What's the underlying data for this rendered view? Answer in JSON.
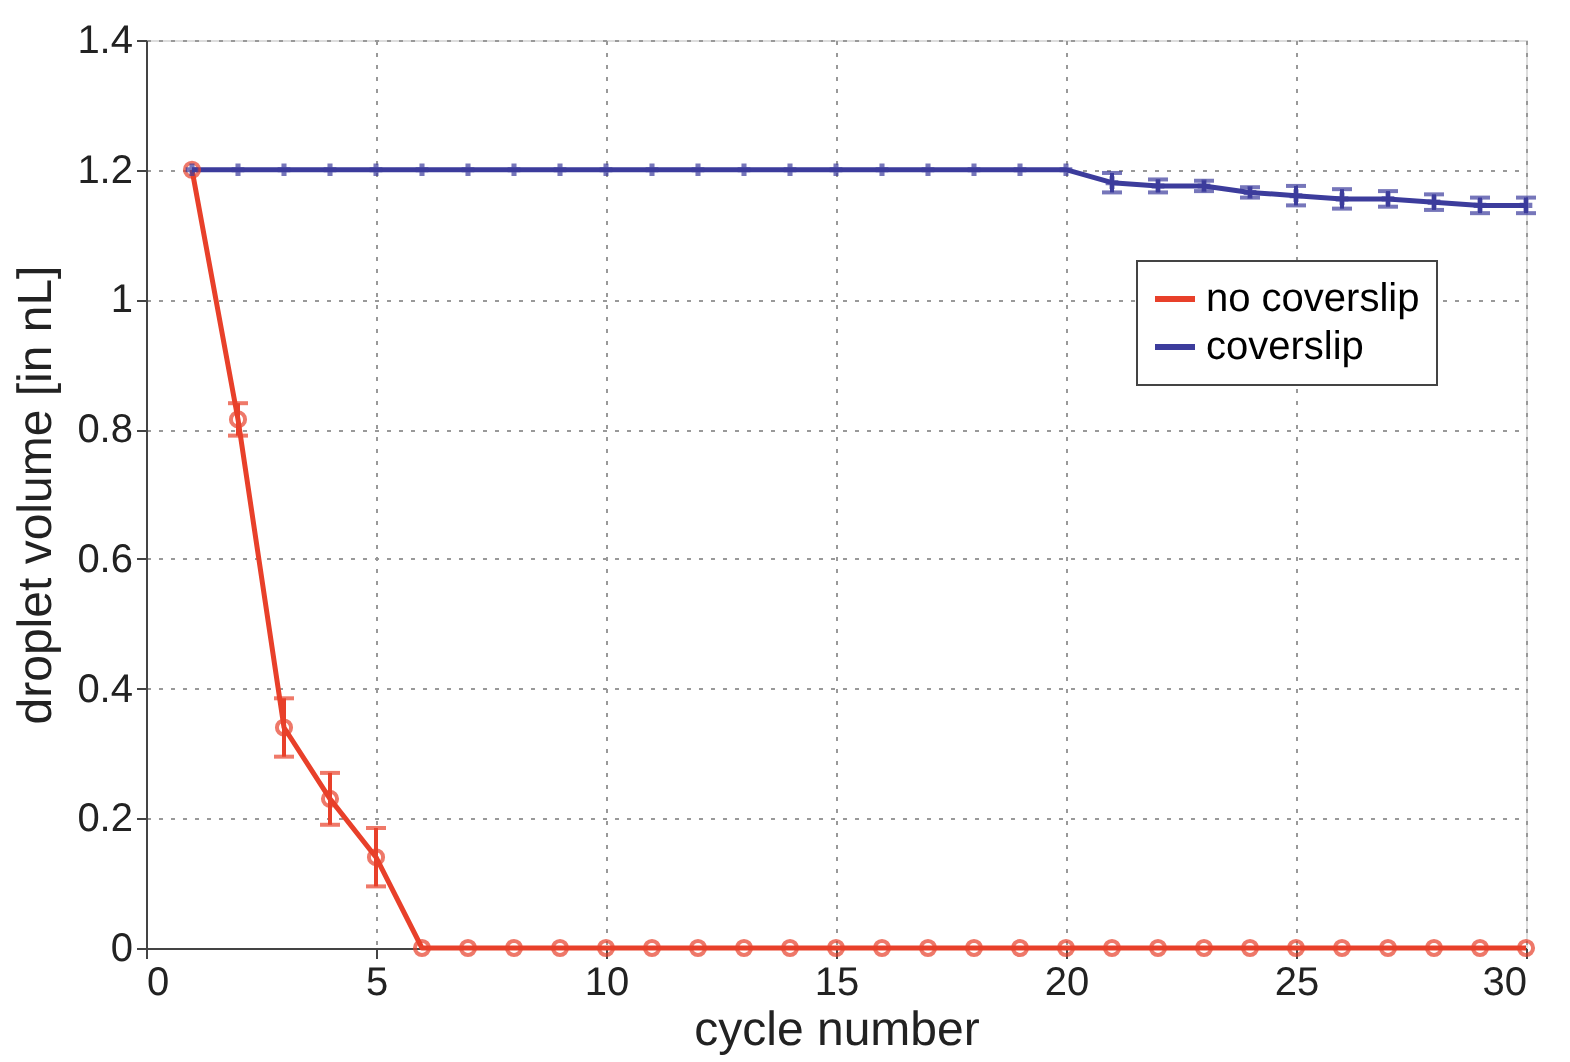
{
  "chart_data": {
    "type": "line",
    "xlabel": "cycle number",
    "ylabel": "droplet volume [in nL]",
    "x": [
      1,
      2,
      3,
      4,
      5,
      6,
      7,
      8,
      9,
      10,
      11,
      12,
      13,
      14,
      15,
      16,
      17,
      18,
      19,
      20,
      21,
      22,
      23,
      24,
      25,
      26,
      27,
      28,
      29,
      30
    ],
    "series": [
      {
        "name": "no coverslip",
        "color": "#e8402a",
        "marker": "circle",
        "values": [
          1.2,
          0.815,
          0.34,
          0.23,
          0.14,
          0,
          0,
          0,
          0,
          0,
          0,
          0,
          0,
          0,
          0,
          0,
          0,
          0,
          0,
          0,
          0,
          0,
          0,
          0,
          0,
          0,
          0,
          0,
          0,
          0
        ],
        "errors": [
          null,
          0.025,
          0.045,
          0.04,
          0.045,
          null,
          null,
          null,
          null,
          null,
          null,
          null,
          null,
          null,
          null,
          null,
          null,
          null,
          null,
          null,
          null,
          null,
          null,
          null,
          null,
          null,
          null,
          null,
          null,
          null
        ]
      },
      {
        "name": "coverslip",
        "color": "#3c3c9c",
        "marker": "cross",
        "values": [
          1.2,
          1.2,
          1.2,
          1.2,
          1.2,
          1.2,
          1.2,
          1.2,
          1.2,
          1.2,
          1.2,
          1.2,
          1.2,
          1.2,
          1.2,
          1.2,
          1.2,
          1.2,
          1.2,
          1.2,
          1.18,
          1.175,
          1.175,
          1.165,
          1.16,
          1.155,
          1.155,
          1.15,
          1.145,
          1.145
        ],
        "errors": [
          null,
          null,
          null,
          null,
          null,
          null,
          null,
          null,
          null,
          null,
          null,
          null,
          null,
          null,
          null,
          null,
          null,
          null,
          null,
          null,
          0.015,
          0.01,
          0.008,
          0.008,
          0.015,
          0.015,
          0.012,
          0.012,
          0.012,
          0.012
        ]
      }
    ],
    "xlim": [
      0,
      30
    ],
    "xticks": [
      0,
      5,
      10,
      15,
      20,
      25,
      30
    ],
    "ylim": [
      0,
      1.4
    ],
    "yticks": [
      0,
      0.2,
      0.4,
      0.6,
      0.8,
      1,
      1.2,
      1.4
    ],
    "grid": true,
    "legend": "right",
    "line_style": "solid"
  }
}
